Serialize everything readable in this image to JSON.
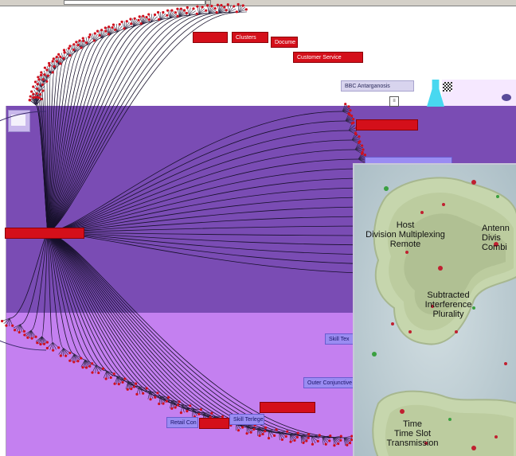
{
  "window": {
    "combo_value": ""
  },
  "tree_labels": [
    {
      "id": "n1",
      "text": "",
      "style": "red"
    },
    {
      "id": "n2",
      "text": "Clusters",
      "style": "red"
    },
    {
      "id": "n3",
      "text": "Docume",
      "style": "red"
    },
    {
      "id": "n4",
      "text": "Customer Service",
      "style": "red"
    },
    {
      "id": "n5",
      "text": "BBC Antarganosis",
      "style": "grey"
    },
    {
      "id": "n6",
      "text": "",
      "style": "red"
    },
    {
      "id": "n7",
      "text": "",
      "style": "blue"
    },
    {
      "id": "n8",
      "text": "",
      "style": "red"
    },
    {
      "id": "n9",
      "text": "Skill Tex",
      "style": "blue"
    },
    {
      "id": "n10",
      "text": "Outer Conjunctive",
      "style": "blue"
    },
    {
      "id": "n11",
      "text": "Retail Con",
      "style": "blue"
    },
    {
      "id": "n12",
      "text": "",
      "style": "red"
    },
    {
      "id": "n13",
      "text": "Skill Terlegen",
      "style": "blue"
    },
    {
      "id": "n14",
      "text": "",
      "style": "red"
    }
  ],
  "map": {
    "regions": [
      {
        "id": "r1",
        "lines": [
          "Host",
          "Division Multiplexing",
          "Remote"
        ]
      },
      {
        "id": "r2",
        "lines": [
          "Antenn",
          "Divis",
          "Combi"
        ]
      },
      {
        "id": "r3",
        "lines": [
          "Subtracted",
          "Interference",
          "Plurality"
        ]
      },
      {
        "id": "r4",
        "lines": [
          "Time",
          "Time Slot",
          "Transmission"
        ]
      }
    ]
  },
  "colors": {
    "band_dark": "#7a4cb4",
    "band_light": "#c480f0",
    "label_red": "#d40f1a",
    "map_water": "#b6c6cc",
    "map_land": "#c8d8b0"
  }
}
